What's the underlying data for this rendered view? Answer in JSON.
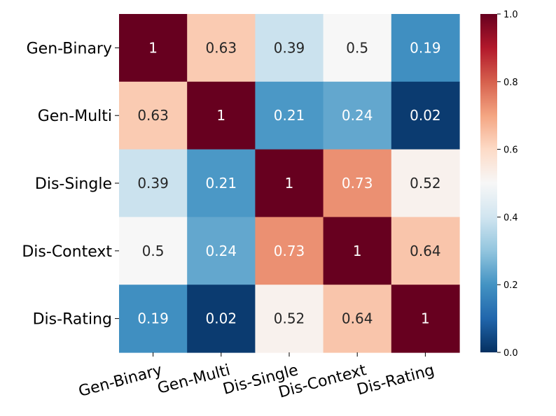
{
  "chart_data": {
    "type": "heatmap",
    "title": "",
    "xlabel": "",
    "ylabel": "",
    "rows": [
      "Gen-Binary",
      "Gen-Multi",
      "Dis-Single",
      "Dis-Context",
      "Dis-Rating"
    ],
    "columns": [
      "Gen-Binary",
      "Gen-Multi",
      "Dis-Single",
      "Dis-Context",
      "Dis-Rating"
    ],
    "values": [
      [
        1,
        0.63,
        0.39,
        0.5,
        0.19
      ],
      [
        0.63,
        1,
        0.21,
        0.24,
        0.02
      ],
      [
        0.39,
        0.21,
        1,
        0.73,
        0.52
      ],
      [
        0.5,
        0.24,
        0.73,
        1,
        0.64
      ],
      [
        0.19,
        0.02,
        0.52,
        0.64,
        1
      ]
    ],
    "value_labels": [
      [
        "1",
        "0.63",
        "0.39",
        "0.5",
        "0.19"
      ],
      [
        "0.63",
        "1",
        "0.21",
        "0.24",
        "0.02"
      ],
      [
        "0.39",
        "0.21",
        "1",
        "0.73",
        "0.52"
      ],
      [
        "0.5",
        "0.24",
        "0.73",
        "1",
        "0.64"
      ],
      [
        "0.19",
        "0.02",
        "0.52",
        "0.64",
        "1"
      ]
    ],
    "colorbar": {
      "range": [
        0.0,
        1.0
      ],
      "ticks": [
        0.0,
        0.2,
        0.4,
        0.6,
        0.8,
        1.0
      ],
      "tick_labels": [
        "0.0",
        "0.2",
        "0.4",
        "0.6",
        "0.8",
        "1.0"
      ],
      "colormap": "RdBu_r",
      "colormap_stops": [
        "#053061",
        "#2166ac",
        "#4393c3",
        "#92c5de",
        "#d1e5f0",
        "#f7f7f7",
        "#fddbc7",
        "#f4a582",
        "#d6604d",
        "#b2182b",
        "#67001f"
      ]
    },
    "text_colors": {
      "light": "#ffffff",
      "dark": "#262626"
    }
  }
}
